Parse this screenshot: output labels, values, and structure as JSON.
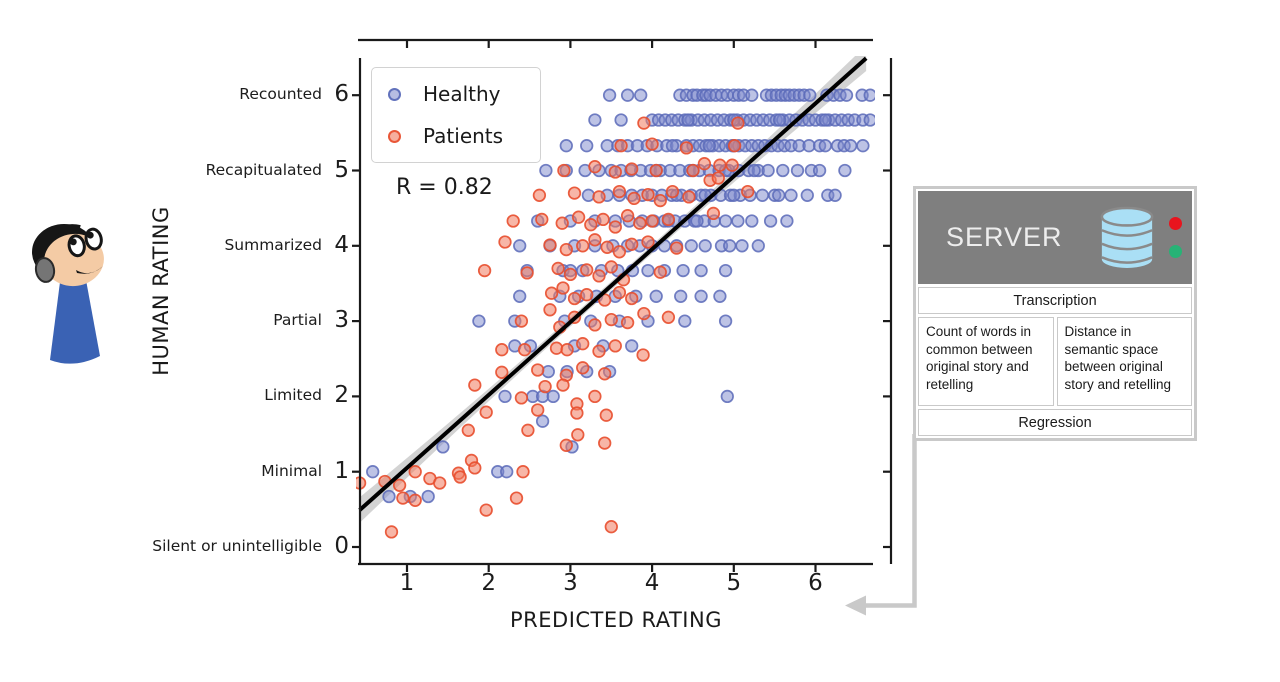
{
  "figure": {
    "xlabel": "PREDICTED RATING",
    "ylabel": "HUMAN RATING",
    "annotation_R": "R = 0.82"
  },
  "legend": {
    "entries": [
      {
        "label": "Healthy",
        "fill": "#7b87cb",
        "edge": "#5a6ab8"
      },
      {
        "label": "Patients",
        "fill": "#f07a5e",
        "edge": "#e84e2e"
      }
    ]
  },
  "server_panel": {
    "header": {
      "label": "SERVER",
      "bg": "#7f7f7f",
      "db_color": "#aadff5",
      "db_line": "#8a8a8a",
      "dot_red": "#e8141e",
      "dot_green": "#27b376"
    },
    "row_transcription": "Transcription",
    "cell_words": "Count of words in common between original story and retelling",
    "cell_semantic": "Distance in semantic space between original story and retelling",
    "row_regression": "Regression"
  },
  "colors": {
    "spine": "#1a1a1a",
    "regression_line": "#000000",
    "confidence_band": "#c8c8c8",
    "arrow_gray": "#c9c9c9",
    "person_skin": "#f4cba5",
    "person_body": "#3a62b4",
    "person_dark": "#161616",
    "ear_cup": "#757575"
  },
  "chart_data": {
    "type": "scatter",
    "title": "",
    "xlabel": "PREDICTED RATING",
    "ylabel": "HUMAN RATING",
    "xlim": [
      0.4,
      6.74
    ],
    "ylim": [
      -0.36,
      6.5
    ],
    "grid": false,
    "xticks": [
      1,
      2,
      3,
      4,
      5,
      6
    ],
    "yticks": [
      0,
      1,
      2,
      3,
      4,
      5,
      6
    ],
    "ytick_category_labels": [
      "Silent or unintelligible",
      "Minimal",
      "Limited",
      "Partial",
      "Summarized",
      "Recapitualated",
      "Recounted"
    ],
    "legend_position": "upper left",
    "correlation_R": 0.82,
    "regression": {
      "slope": 0.968,
      "intercept": 0.083,
      "x_start": 0.42,
      "x_end": 6.62,
      "ci_mid_halfwidth": 0.055,
      "ci_end_halfwidth": 0.17,
      "ci_center_x": 3.52
    },
    "series": [
      {
        "name": "Healthy",
        "fill": "#7b87cb",
        "edge": "#5a6ab8",
        "fill_opacity": 0.5,
        "edge_opacity": 0.85,
        "bands": [
          {
            "y": 6.0,
            "x": [
              3.48,
              3.7,
              3.86,
              4.34,
              4.42,
              4.5,
              4.55,
              4.62,
              4.66,
              4.71,
              4.78,
              4.85,
              4.92,
              5.0,
              5.06,
              5.12,
              5.22,
              5.4,
              5.46,
              5.52,
              5.58,
              5.63,
              5.68,
              5.74,
              5.8,
              5.86,
              5.93,
              6.14,
              6.22,
              6.3,
              6.38,
              6.57,
              6.67
            ]
          },
          {
            "y": 5.67,
            "x": [
              3.3,
              3.62,
              4.0,
              4.08,
              4.16,
              4.24,
              4.32,
              4.4,
              4.48,
              4.56,
              4.64,
              4.72,
              4.8,
              4.88,
              4.96,
              5.04,
              5.12,
              5.2,
              5.28,
              5.36,
              5.44,
              5.52,
              5.6,
              5.68,
              5.76,
              5.84,
              5.92,
              6.0,
              6.08,
              6.16,
              6.24,
              6.32,
              6.4,
              6.48,
              6.58,
              6.67,
              4.44,
              5.0,
              5.56,
              6.12
            ]
          },
          {
            "y": 5.33,
            "x": [
              2.95,
              3.2,
              3.45,
              3.58,
              3.7,
              3.82,
              3.94,
              4.06,
              4.18,
              4.3,
              4.42,
              4.5,
              4.58,
              4.66,
              4.74,
              4.82,
              4.9,
              4.98,
              5.06,
              5.14,
              5.22,
              5.3,
              5.38,
              5.46,
              5.54,
              5.62,
              5.7,
              5.8,
              5.92,
              6.05,
              6.12,
              6.27,
              6.35,
              6.43,
              6.58,
              4.25,
              4.7,
              5.0
            ]
          },
          {
            "y": 5.0,
            "x": [
              2.7,
              2.95,
              3.18,
              3.35,
              3.5,
              3.62,
              3.74,
              3.86,
              3.98,
              4.1,
              4.22,
              4.34,
              4.46,
              4.58,
              4.7,
              4.82,
              4.94,
              5.06,
              5.18,
              5.3,
              5.42,
              5.6,
              5.78,
              5.95,
              6.05,
              6.36,
              4.05,
              4.5,
              4.9,
              5.25
            ]
          },
          {
            "y": 4.67,
            "x": [
              3.22,
              3.45,
              3.6,
              3.75,
              3.88,
              4.0,
              4.12,
              4.24,
              4.36,
              4.48,
              4.6,
              4.72,
              4.84,
              4.96,
              5.08,
              5.2,
              5.35,
              5.5,
              5.7,
              5.9,
              6.15,
              6.24,
              4.3,
              4.65,
              5.0,
              5.55
            ]
          },
          {
            "y": 4.33,
            "x": [
              2.6,
              3.0,
              3.3,
              3.55,
              3.72,
              3.88,
              4.02,
              4.15,
              4.28,
              4.4,
              4.52,
              4.64,
              4.76,
              4.9,
              5.05,
              5.22,
              5.45,
              5.65,
              4.2,
              4.55
            ]
          },
          {
            "y": 4.0,
            "x": [
              2.38,
              2.75,
              3.05,
              3.3,
              3.52,
              3.7,
              3.85,
              4.0,
              4.15,
              4.3,
              4.48,
              4.65,
              4.85,
              5.1,
              5.3,
              4.95
            ]
          },
          {
            "y": 3.67,
            "x": [
              2.47,
              2.91,
              3.0,
              3.15,
              3.38,
              3.58,
              3.76,
              3.95,
              4.15,
              4.38,
              4.6,
              4.9
            ]
          },
          {
            "y": 3.33,
            "x": [
              2.38,
              2.87,
              3.1,
              3.32,
              3.55,
              3.8,
              4.05,
              4.35,
              4.6,
              4.83
            ]
          },
          {
            "y": 3.0,
            "x": [
              1.88,
              2.32,
              2.93,
              3.25,
              3.6,
              3.95,
              4.4,
              4.9
            ]
          },
          {
            "y": 2.67,
            "x": [
              2.32,
              2.51,
              3.05,
              3.4,
              3.75
            ]
          },
          {
            "y": 2.33,
            "x": [
              2.73,
              2.96,
              3.2,
              3.48
            ]
          },
          {
            "y": 2.0,
            "x": [
              2.2,
              2.54,
              2.66,
              2.79,
              4.92
            ]
          },
          {
            "y": 1.67,
            "x": [
              2.66
            ]
          },
          {
            "y": 1.33,
            "x": [
              1.44,
              3.02
            ]
          },
          {
            "y": 1.0,
            "x": [
              0.58,
              2.11,
              2.22
            ]
          },
          {
            "y": 0.67,
            "x": [
              0.78,
              1.04,
              1.26
            ]
          }
        ]
      },
      {
        "name": "Patients",
        "fill": "#f07a5e",
        "edge": "#e84e2e",
        "fill_opacity": 0.55,
        "edge_opacity": 0.9,
        "points": [
          [
            3.9,
            5.63
          ],
          [
            5.05,
            5.63
          ],
          [
            3.62,
            5.33
          ],
          [
            4.0,
            5.35
          ],
          [
            4.42,
            5.3
          ],
          [
            5.01,
            5.33
          ],
          [
            2.92,
            5.0
          ],
          [
            3.3,
            5.05
          ],
          [
            3.55,
            4.98
          ],
          [
            3.75,
            5.02
          ],
          [
            4.05,
            5.0
          ],
          [
            4.5,
            5.0
          ],
          [
            4.64,
            5.09
          ],
          [
            4.83,
            5.07
          ],
          [
            4.98,
            5.07
          ],
          [
            2.62,
            4.67
          ],
          [
            3.05,
            4.7
          ],
          [
            3.35,
            4.65
          ],
          [
            3.6,
            4.72
          ],
          [
            3.78,
            4.63
          ],
          [
            3.95,
            4.68
          ],
          [
            4.1,
            4.6
          ],
          [
            4.25,
            4.72
          ],
          [
            4.45,
            4.65
          ],
          [
            4.71,
            4.87
          ],
          [
            4.81,
            4.9
          ],
          [
            5.17,
            4.72
          ],
          [
            2.3,
            4.33
          ],
          [
            2.65,
            4.35
          ],
          [
            2.9,
            4.3
          ],
          [
            3.1,
            4.38
          ],
          [
            3.25,
            4.28
          ],
          [
            3.4,
            4.35
          ],
          [
            3.55,
            4.25
          ],
          [
            3.7,
            4.4
          ],
          [
            3.85,
            4.3
          ],
          [
            4.0,
            4.33
          ],
          [
            4.2,
            4.35
          ],
          [
            4.75,
            4.43
          ],
          [
            2.2,
            4.05
          ],
          [
            2.75,
            4.01
          ],
          [
            2.95,
            3.95
          ],
          [
            3.15,
            4.0
          ],
          [
            3.3,
            4.08
          ],
          [
            3.45,
            3.98
          ],
          [
            3.6,
            3.92
          ],
          [
            3.75,
            4.02
          ],
          [
            3.95,
            4.05
          ],
          [
            4.3,
            3.97
          ],
          [
            1.95,
            3.67
          ],
          [
            2.47,
            3.64
          ],
          [
            2.85,
            3.7
          ],
          [
            3.0,
            3.62
          ],
          [
            3.2,
            3.68
          ],
          [
            3.35,
            3.6
          ],
          [
            3.5,
            3.72
          ],
          [
            3.65,
            3.55
          ],
          [
            4.1,
            3.65
          ],
          [
            2.77,
            3.37
          ],
          [
            2.91,
            3.44
          ],
          [
            3.05,
            3.3
          ],
          [
            3.2,
            3.35
          ],
          [
            3.42,
            3.28
          ],
          [
            3.6,
            3.38
          ],
          [
            3.75,
            3.3
          ],
          [
            2.75,
            3.15
          ],
          [
            2.4,
            3.0
          ],
          [
            2.87,
            2.92
          ],
          [
            3.05,
            3.05
          ],
          [
            3.3,
            2.95
          ],
          [
            3.5,
            3.02
          ],
          [
            3.7,
            2.98
          ],
          [
            3.9,
            3.1
          ],
          [
            4.2,
            3.05
          ],
          [
            2.16,
            2.62
          ],
          [
            2.44,
            2.62
          ],
          [
            2.83,
            2.64
          ],
          [
            2.96,
            2.62
          ],
          [
            3.15,
            2.7
          ],
          [
            3.35,
            2.6
          ],
          [
            3.55,
            2.67
          ],
          [
            3.89,
            2.55
          ],
          [
            2.16,
            2.32
          ],
          [
            2.6,
            2.35
          ],
          [
            2.95,
            2.28
          ],
          [
            3.15,
            2.38
          ],
          [
            3.42,
            2.3
          ],
          [
            1.83,
            2.15
          ],
          [
            2.69,
            2.13
          ],
          [
            2.91,
            2.15
          ],
          [
            2.4,
            1.98
          ],
          [
            2.6,
            1.82
          ],
          [
            3.08,
            1.9
          ],
          [
            3.3,
            2.0
          ],
          [
            1.75,
            1.55
          ],
          [
            1.97,
            1.79
          ],
          [
            2.48,
            1.55
          ],
          [
            2.95,
            1.35
          ],
          [
            3.08,
            1.78
          ],
          [
            3.09,
            1.49
          ],
          [
            3.42,
            1.38
          ],
          [
            3.44,
            1.75
          ],
          [
            1.1,
            1.0
          ],
          [
            1.28,
            0.91
          ],
          [
            1.4,
            0.85
          ],
          [
            1.63,
            0.98
          ],
          [
            1.65,
            0.93
          ],
          [
            1.79,
            1.15
          ],
          [
            1.83,
            1.05
          ],
          [
            2.42,
            1.0
          ],
          [
            0.42,
            0.85
          ],
          [
            0.73,
            0.87
          ],
          [
            0.91,
            0.82
          ],
          [
            0.95,
            0.65
          ],
          [
            1.1,
            0.62
          ],
          [
            1.97,
            0.49
          ],
          [
            2.34,
            0.65
          ],
          [
            0.81,
            0.2
          ],
          [
            3.5,
            0.27
          ]
        ]
      }
    ]
  }
}
